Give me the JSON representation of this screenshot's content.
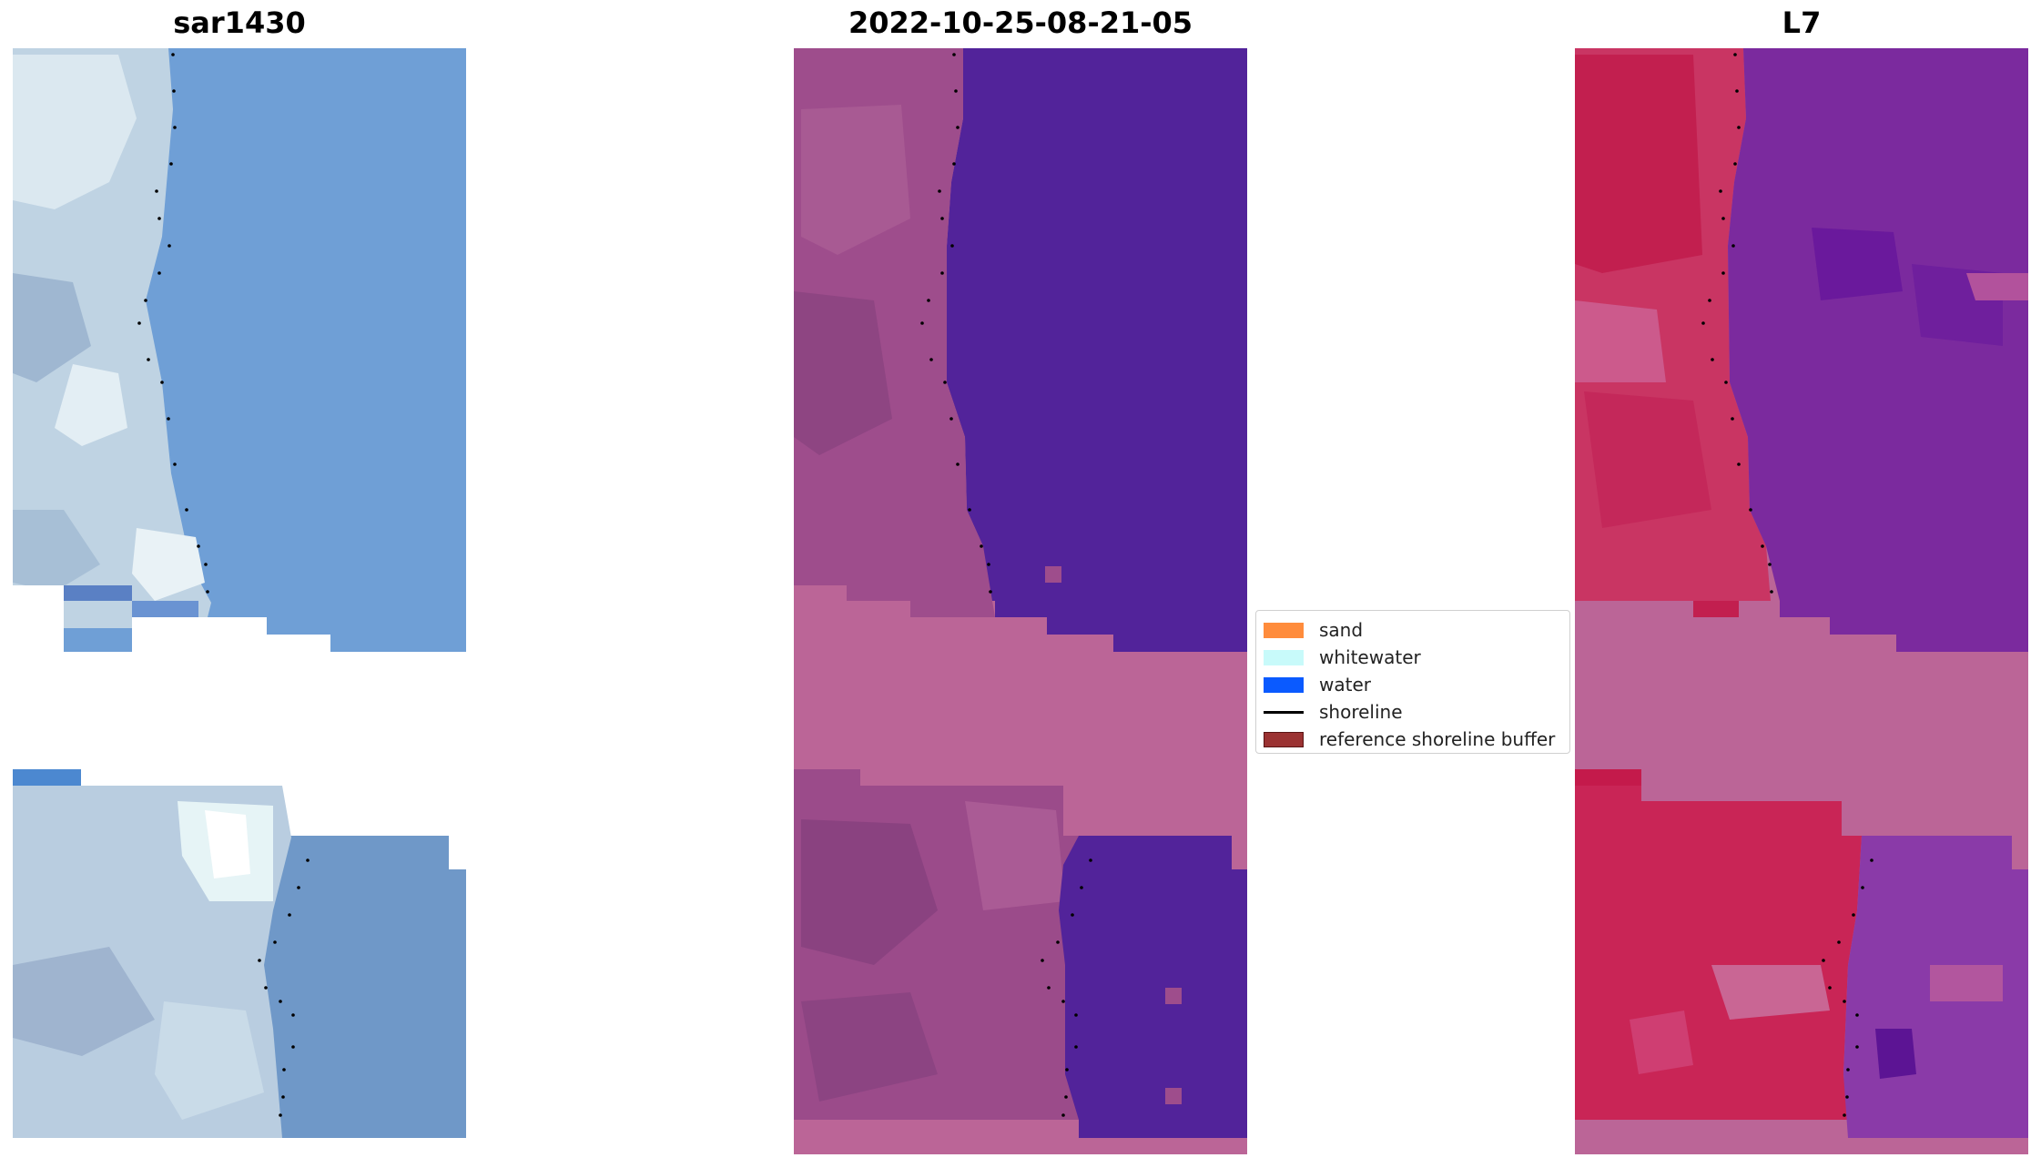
{
  "panels": {
    "left_title": "sar1430",
    "middle_title": "2022-10-25-08-21-05",
    "right_title": "L7"
  },
  "legend": {
    "items": [
      {
        "label": "sand",
        "type": "patch",
        "color": "#ff8c3c"
      },
      {
        "label": "whitewater",
        "type": "patch",
        "color": "#c8fafa"
      },
      {
        "label": "water",
        "type": "patch",
        "color": "#0a5aff"
      },
      {
        "label": "shoreline",
        "type": "line",
        "color": "#000000"
      },
      {
        "label": "reference shoreline buffer",
        "type": "patch",
        "color": "#9b3232"
      }
    ]
  },
  "colors": {
    "rgb_water": "#6f9fd6",
    "rgb_beach": "#c7d8e6",
    "class_water": "#52239a",
    "class_land": "#9e4d8c",
    "nodata_buffer": "#bb6597",
    "mndwi_land": "#cb2c58",
    "mndwi_water": "#7a2aa0",
    "shoreline_points": "#000000"
  }
}
